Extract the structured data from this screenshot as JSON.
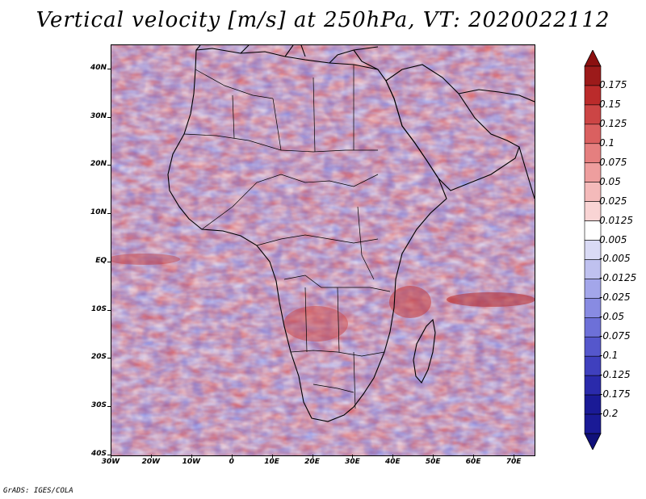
{
  "title": "Vertical velocity [m/s] at 250hPa, VT: 2020022112",
  "footer": "GrADS: IGES/COLA",
  "map": {
    "lon_range": [
      -30,
      75
    ],
    "lat_range": [
      -40,
      45
    ],
    "y_ticks": [
      {
        "value": 40,
        "label": "40N"
      },
      {
        "value": 30,
        "label": "30N"
      },
      {
        "value": 20,
        "label": "20N"
      },
      {
        "value": 10,
        "label": "10N"
      },
      {
        "value": 0,
        "label": "EQ"
      },
      {
        "value": -10,
        "label": "10S"
      },
      {
        "value": -20,
        "label": "20S"
      },
      {
        "value": -30,
        "label": "30S"
      },
      {
        "value": -40,
        "label": "40S"
      }
    ],
    "x_ticks": [
      {
        "value": -30,
        "label": "30W"
      },
      {
        "value": -20,
        "label": "20W"
      },
      {
        "value": -10,
        "label": "10W"
      },
      {
        "value": 0,
        "label": "0"
      },
      {
        "value": 10,
        "label": "10E"
      },
      {
        "value": 20,
        "label": "20E"
      },
      {
        "value": 30,
        "label": "30E"
      },
      {
        "value": 40,
        "label": "40E"
      },
      {
        "value": 50,
        "label": "50E"
      },
      {
        "value": 60,
        "label": "60E"
      },
      {
        "value": 70,
        "label": "70E"
      }
    ]
  },
  "colorbar": {
    "levels": [
      {
        "label": "0.175",
        "color": "#a61c1c"
      },
      {
        "label": "0.15",
        "color": "#bb2b2b"
      },
      {
        "label": "0.125",
        "color": "#cc4545"
      },
      {
        "label": "0.1",
        "color": "#da6060"
      },
      {
        "label": "0.075",
        "color": "#e57f7f"
      },
      {
        "label": "0.05",
        "color": "#ee9e9e"
      },
      {
        "label": "0.025",
        "color": "#f4baba"
      },
      {
        "label": "0.0125",
        "color": "#f9d4d4"
      },
      {
        "label": "0.005",
        "color": "#ffffff"
      },
      {
        "label": "-0.005",
        "color": "#d9daf5"
      },
      {
        "label": "-0.0125",
        "color": "#bfc1ef"
      },
      {
        "label": "-0.025",
        "color": "#a3a6ea"
      },
      {
        "label": "-0.05",
        "color": "#888be2"
      },
      {
        "label": "-0.075",
        "color": "#6d70d8"
      },
      {
        "label": "-0.1",
        "color": "#5557cc"
      },
      {
        "label": "-0.125",
        "color": "#3f40be"
      },
      {
        "label": "-0.175",
        "color": "#2a2aab"
      },
      {
        "label": "-0.2",
        "color": "#1a1a96"
      }
    ],
    "top_color": "#8b1010",
    "bottom_color": "#10107a"
  }
}
